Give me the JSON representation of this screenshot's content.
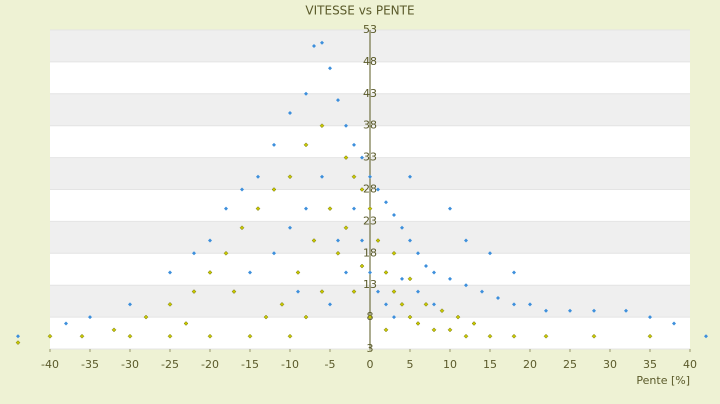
{
  "chart_data": {
    "type": "scatter",
    "title": "VITESSE vs PENTE",
    "x_label": "Pente [%]",
    "xlim": [
      -40,
      40
    ],
    "ylim": [
      3,
      53
    ],
    "xticks": [
      -40,
      -35,
      -30,
      -25,
      -20,
      -15,
      -10,
      -5,
      0,
      5,
      10,
      15,
      20,
      25,
      30,
      35,
      40
    ],
    "yticks": [
      3,
      8,
      13,
      18,
      23,
      28,
      33,
      38,
      43,
      48,
      53
    ],
    "grid": true,
    "series": [
      {
        "color": "#3d8fdc",
        "x": [
          -7,
          -6,
          -5,
          -8,
          -10,
          -4,
          -3,
          -2,
          -1,
          0,
          1,
          2,
          3,
          4,
          5,
          6,
          7,
          8,
          10,
          12,
          14,
          16,
          18,
          20,
          22,
          25,
          28,
          32,
          35,
          38,
          -12,
          -14,
          -16,
          -18,
          -20,
          -22,
          -25,
          -30,
          -35,
          -38,
          -44,
          -2,
          -1,
          0,
          1,
          2,
          3,
          4,
          6,
          8,
          -6,
          -8,
          -10,
          -4,
          -3,
          15,
          18,
          12,
          10,
          5,
          -15,
          -12,
          -9,
          -5,
          42
        ],
        "values": [
          50.5,
          51,
          47,
          43,
          40,
          42,
          38,
          35,
          33,
          30,
          28,
          26,
          24,
          22,
          20,
          18,
          16,
          15,
          14,
          13,
          12,
          11,
          10,
          10,
          9,
          9,
          9,
          9,
          8,
          7,
          35,
          30,
          28,
          25,
          20,
          18,
          15,
          10,
          8,
          7,
          5,
          25,
          20,
          15,
          12,
          10,
          8,
          14,
          12,
          10,
          30,
          25,
          22,
          20,
          15,
          18,
          15,
          20,
          25,
          30,
          15,
          18,
          12,
          10,
          5
        ]
      },
      {
        "color": "#c9c900",
        "x": [
          -6,
          -8,
          -10,
          -12,
          -14,
          -16,
          -18,
          -20,
          -22,
          -25,
          -28,
          -32,
          -36,
          -40,
          -44,
          -3,
          -2,
          -1,
          0,
          1,
          2,
          3,
          4,
          5,
          6,
          8,
          10,
          12,
          15,
          18,
          22,
          28,
          35,
          -5,
          -7,
          -9,
          -11,
          -13,
          -15,
          -4,
          -2,
          0,
          2,
          -6,
          -8,
          -10,
          -20,
          -25,
          7,
          9,
          11,
          13,
          -3,
          -1,
          3,
          5,
          -17,
          -23,
          -30
        ],
        "values": [
          38,
          35,
          30,
          28,
          25,
          22,
          18,
          15,
          12,
          10,
          8,
          6,
          5,
          5,
          4,
          33,
          30,
          28,
          25,
          20,
          15,
          12,
          10,
          8,
          7,
          6,
          6,
          5,
          5,
          5,
          5,
          5,
          5,
          25,
          20,
          15,
          10,
          8,
          5,
          18,
          12,
          8,
          6,
          12,
          8,
          5,
          5,
          5,
          10,
          9,
          8,
          7,
          22,
          16,
          18,
          14,
          12,
          7,
          5
        ]
      }
    ]
  }
}
